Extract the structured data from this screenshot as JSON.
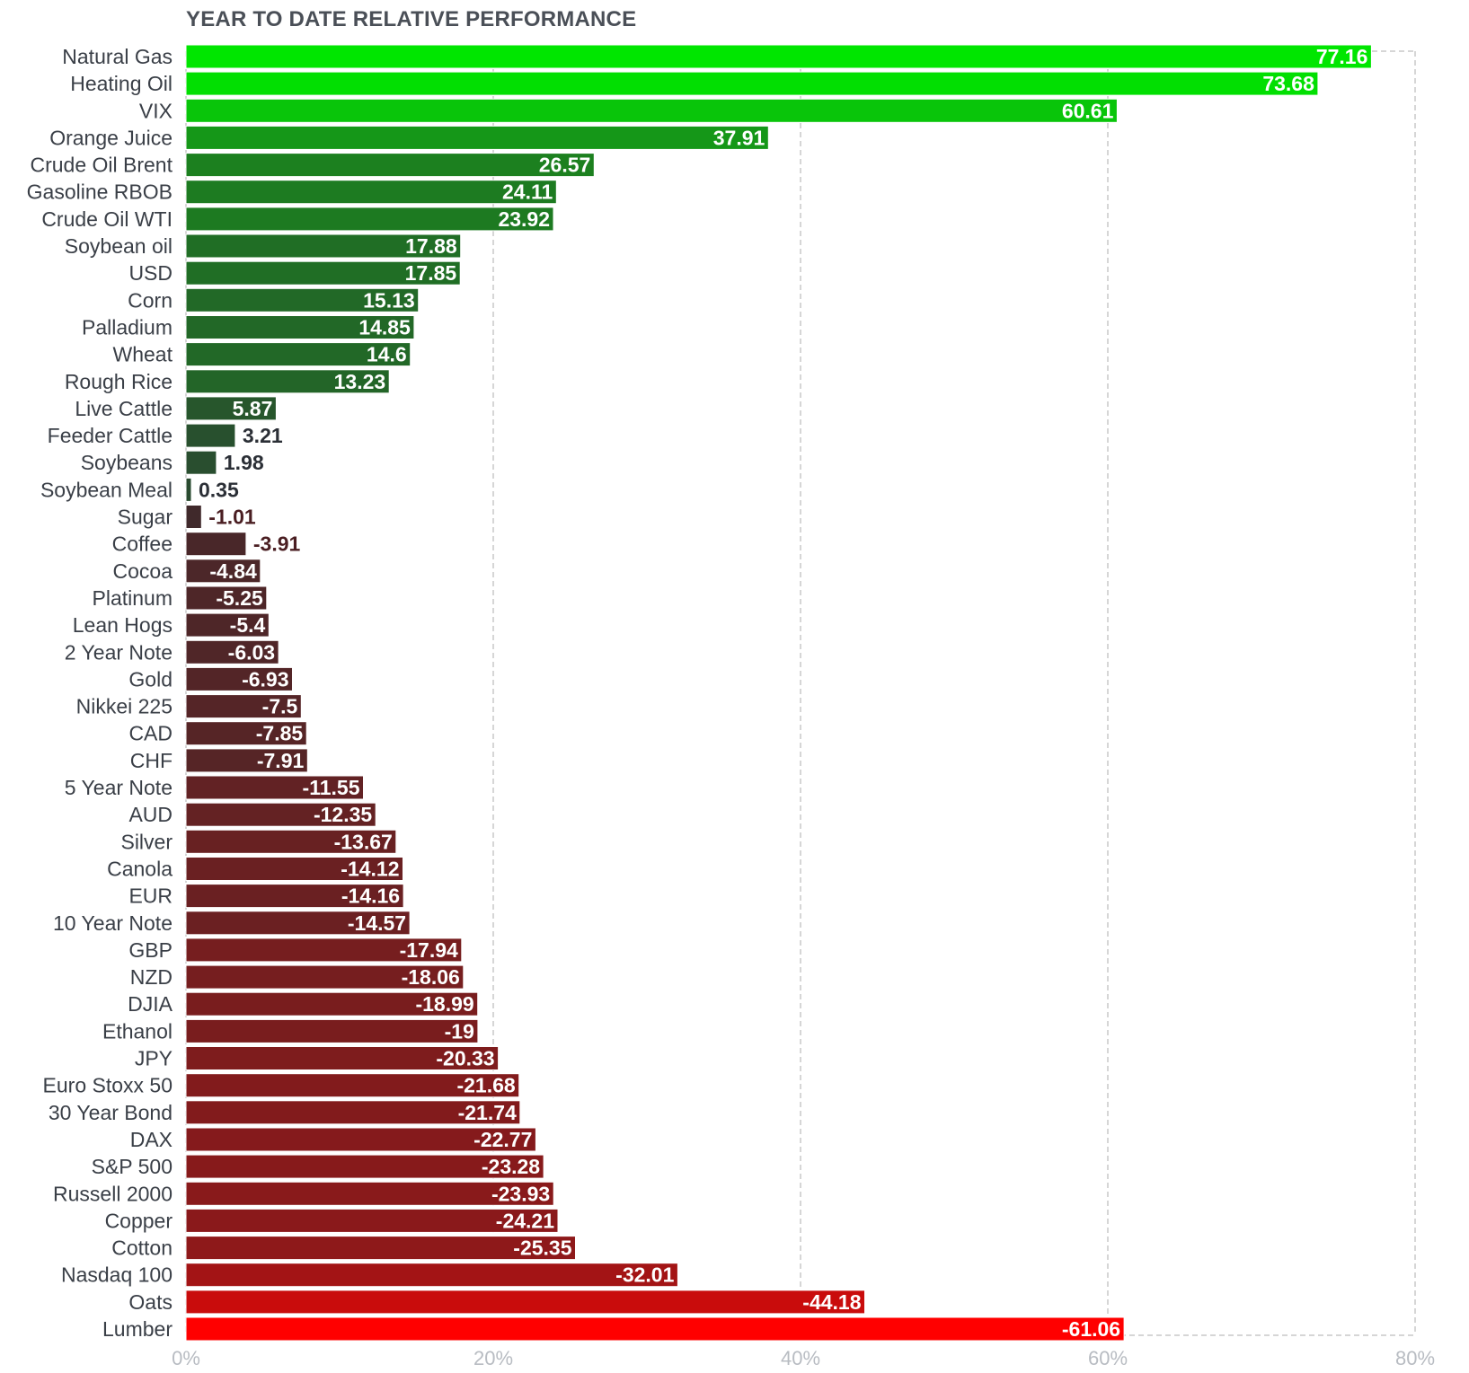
{
  "chart_data": {
    "type": "bar",
    "orientation": "horizontal",
    "title": "YEAR TO DATE RELATIVE PERFORMANCE",
    "xlim": [
      0,
      80
    ],
    "xticks": [
      "0%",
      "20%",
      "40%",
      "60%",
      "80%"
    ],
    "grid": true,
    "categories": [
      "Natural Gas",
      "Heating Oil",
      "VIX",
      "Orange Juice",
      "Crude Oil Brent",
      "Gasoline RBOB",
      "Crude Oil WTI",
      "Soybean oil",
      "USD",
      "Corn",
      "Palladium",
      "Wheat",
      "Rough Rice",
      "Live Cattle",
      "Feeder Cattle",
      "Soybeans",
      "Soybean Meal",
      "Sugar",
      "Coffee",
      "Cocoa",
      "Platinum",
      "Lean Hogs",
      "2 Year Note",
      "Gold",
      "Nikkei 225",
      "CAD",
      "CHF",
      "5 Year Note",
      "AUD",
      "Silver",
      "Canola",
      "EUR",
      "10 Year Note",
      "GBP",
      "NZD",
      "DJIA",
      "Ethanol",
      "JPY",
      "Euro Stoxx 50",
      "30 Year Bond",
      "DAX",
      "S&P 500",
      "Russell 2000",
      "Copper",
      "Cotton",
      "Nasdaq 100",
      "Oats",
      "Lumber"
    ],
    "values": [
      77.16,
      73.68,
      60.61,
      37.91,
      26.57,
      24.11,
      23.92,
      17.88,
      17.85,
      15.13,
      14.85,
      14.6,
      13.23,
      5.87,
      3.21,
      1.98,
      0.35,
      -1.01,
      -3.91,
      -4.84,
      -5.25,
      -5.4,
      -6.03,
      -6.93,
      -7.5,
      -7.85,
      -7.91,
      -11.55,
      -12.35,
      -13.67,
      -14.12,
      -14.16,
      -14.57,
      -17.94,
      -18.06,
      -18.99,
      -19,
      -20.33,
      -21.68,
      -21.74,
      -22.77,
      -23.28,
      -23.93,
      -24.21,
      -25.35,
      -32.01,
      -44.18,
      -61.06
    ],
    "value_labels": [
      "77.16",
      "73.68",
      "60.61",
      "37.91",
      "26.57",
      "24.11",
      "23.92",
      "17.88",
      "17.85",
      "15.13",
      "14.85",
      "14.6",
      "13.23",
      "5.87",
      "3.21",
      "1.98",
      "0.35",
      "-1.01",
      "-3.91",
      "-4.84",
      "-5.25",
      "-5.4",
      "-6.03",
      "-6.93",
      "-7.5",
      "-7.85",
      "-7.91",
      "-11.55",
      "-12.35",
      "-13.67",
      "-14.12",
      "-14.16",
      "-14.57",
      "-17.94",
      "-18.06",
      "-18.99",
      "-19",
      "-20.33",
      "-21.68",
      "-21.74",
      "-22.77",
      "-23.28",
      "-23.93",
      "-24.21",
      "-25.35",
      "-32.01",
      "-44.18",
      "-61.06"
    ],
    "colors": {
      "positive_strong": "#00e600",
      "positive_weak": "#2a4a30",
      "negative_weak": "#3d2a2c",
      "negative_strong": "#ff0000",
      "grid": "#c8c8c8",
      "dark_label": "#2b2f36"
    }
  }
}
